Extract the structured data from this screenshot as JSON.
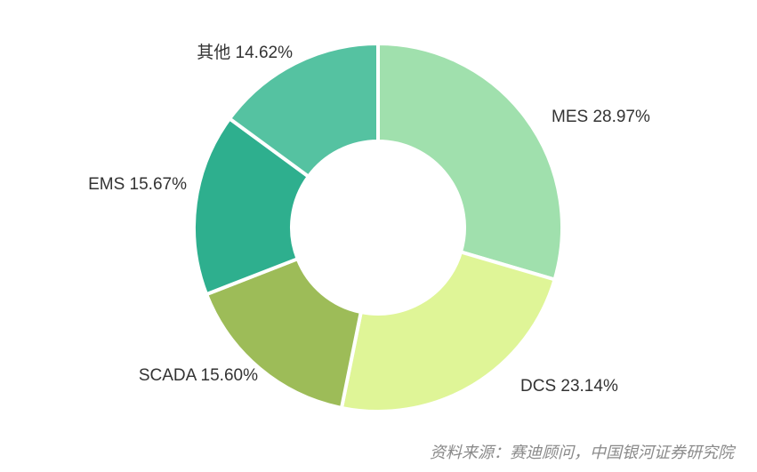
{
  "chart_data": {
    "type": "pie",
    "title": "",
    "categories": [
      "MES",
      "DCS",
      "SCADA",
      "EMS",
      "其他"
    ],
    "values": [
      28.97,
      23.14,
      15.6,
      15.67,
      14.62
    ],
    "unit": "%",
    "labels": [
      "MES 28.97%",
      "DCS 23.14%",
      "SCADA 15.60%",
      "EMS 15.67%",
      "其他 14.62%"
    ],
    "colors": [
      "#a0e0ad",
      "#dff597",
      "#9dbc58",
      "#2eaf8e",
      "#55c2a1"
    ],
    "legend": "none"
  },
  "source_note": "资料来源：赛迪顾问，中国银河证券研究院"
}
